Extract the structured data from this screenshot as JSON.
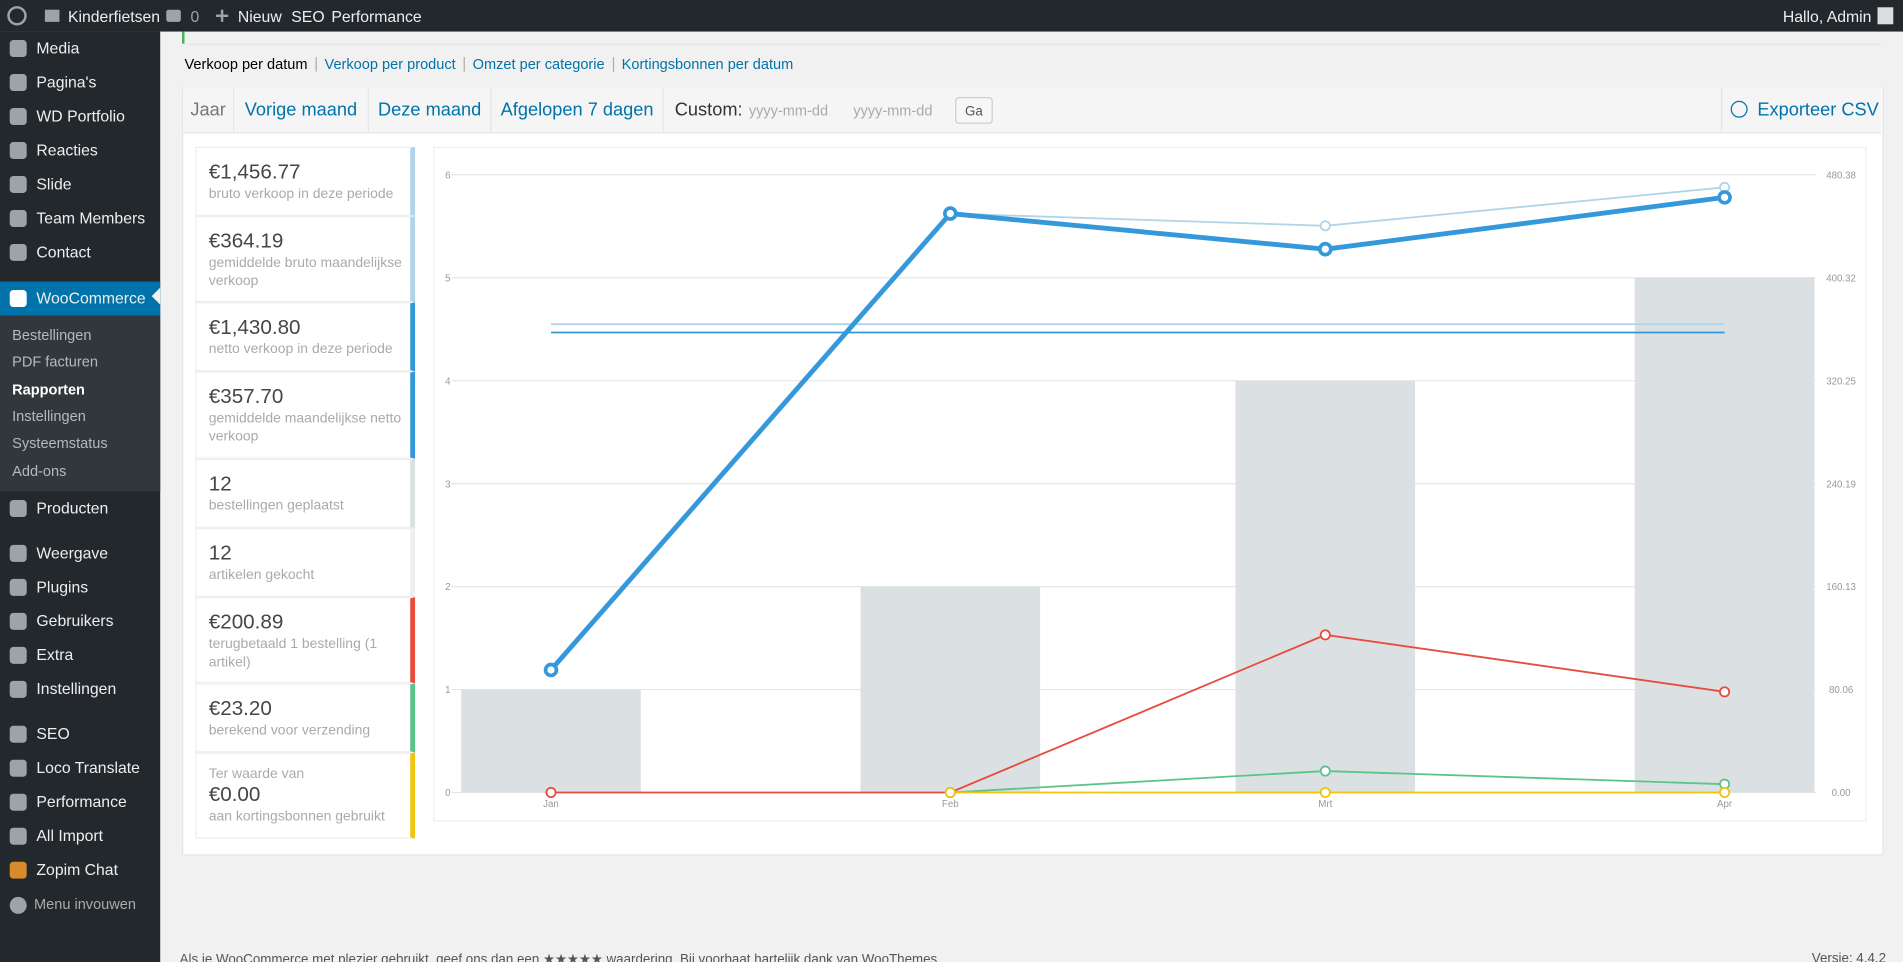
{
  "admin_bar": {
    "site": "Kinderfietsen",
    "comments": "0",
    "new": "Nieuw",
    "items": [
      "SEO",
      "Performance"
    ],
    "greeting": "Hallo, Admin"
  },
  "menu": {
    "items": [
      "Media",
      "Pagina's",
      "WD Portfolio",
      "Reacties",
      "Slide",
      "Team Members",
      "Contact"
    ],
    "active": "WooCommerce",
    "submenu": [
      "Bestellingen",
      "PDF facturen",
      "Rapporten",
      "Instellingen",
      "Systeemstatus",
      "Add-ons"
    ],
    "groups": [
      [
        "Producten"
      ],
      [
        "Weergave",
        "Plugins",
        "Gebruikers",
        "Extra",
        "Instellingen"
      ],
      [
        "SEO",
        "Loco Translate",
        "Performance",
        "All Import",
        "Zopim Chat"
      ]
    ],
    "collapse": "Menu invouwen"
  },
  "report_nav": [
    "Verkoop per datum",
    "Verkoop per product",
    "Omzet per categorie",
    "Kortingsbonnen per datum"
  ],
  "range_tabs": [
    "Jaar",
    "Vorige maand",
    "Deze maand",
    "Afgelopen 7 dagen"
  ],
  "custom": {
    "label": "Custom:",
    "from": "yyyy-mm-dd",
    "to": "yyyy-mm-dd",
    "button": "Ga"
  },
  "export": "Exporteer CSV",
  "legend": [
    {
      "value": "€1,456.77",
      "text": "bruto verkoop in deze periode",
      "color": "#b1d4ea"
    },
    {
      "value": "€364.19",
      "text": "gemiddelde bruto maandelijkse verkoop",
      "color": "#b1d4ea"
    },
    {
      "value": "€1,430.80",
      "text": "netto verkoop in deze periode",
      "color": "#3498db"
    },
    {
      "value": "€357.70",
      "text": "gemiddelde maandelijkse netto verkoop",
      "color": "#3498db"
    },
    {
      "value": "12",
      "text": "bestellingen geplaatst",
      "color": "#dbe1e3"
    },
    {
      "value": "12",
      "text": "artikelen gekocht",
      "color": "#ecf0f1"
    },
    {
      "value": "€200.89",
      "text": "terugbetaald 1 bestelling (1 artikel)",
      "color": "#e74c3c"
    },
    {
      "value": "€23.20",
      "text": "berekend voor verzending",
      "color": "#5cc488"
    },
    {
      "prefix": "Ter waarde van",
      "value": "€0.00",
      "text": "aan kortingsbonnen gebruikt",
      "color": "#f1c40f"
    }
  ],
  "chart_data": {
    "type": "combo",
    "categories": [
      "Jan",
      "Feb",
      "Mrt",
      "Apr"
    ],
    "ylim": [
      0,
      6
    ],
    "yticks": [
      0,
      1,
      2,
      3,
      4,
      5,
      6
    ],
    "y2lim": [
      0,
      480.38
    ],
    "y2ticks": [
      {
        "value": 0,
        "label": "0.00"
      },
      80.06,
      160.13,
      240.19,
      320.25,
      400.32,
      480.38
    ],
    "grid": true,
    "series": [
      {
        "type": "bar",
        "color": "#dbe1e3",
        "values": [
          1,
          2,
          4,
          5
        ]
      },
      {
        "type": "line",
        "axis": "y2",
        "color": "#b1d4ea",
        "values": [
          364.19,
          364.19,
          364.19,
          364.19
        ],
        "markers": false,
        "thick": false
      },
      {
        "type": "line",
        "axis": "y2",
        "color": "#3498db",
        "values": [
          357.7,
          357.7,
          357.7,
          357.7
        ],
        "markers": false,
        "thick": false
      },
      {
        "type": "line",
        "axis": "y2",
        "color": "#b1d4ea",
        "values": [
          95.3,
          450.2,
          440.7,
          470.57
        ],
        "markers": true,
        "thick": false
      },
      {
        "type": "line",
        "axis": "y2",
        "color": "#3498db",
        "values": [
          95.3,
          450.2,
          422.5,
          462.8
        ],
        "markers": true,
        "thick": true
      },
      {
        "type": "line",
        "axis": "y2",
        "color": "#e74c3c",
        "values": [
          0,
          0,
          122.6,
          78.29
        ],
        "markers": true,
        "thick": false
      },
      {
        "type": "line",
        "axis": "y2",
        "color": "#5cc488",
        "values": [
          null,
          0,
          16.7,
          6.5
        ],
        "markers": true,
        "thick": false
      },
      {
        "type": "line",
        "axis": "y2",
        "color": "#f1c40f",
        "values": [
          null,
          0,
          0,
          0
        ],
        "markers": true,
        "thick": false
      }
    ]
  },
  "footer": {
    "text": "Als je WooCommerce met plezier gebruikt, geef ons dan een ★★★★★ waardering. Bij voorbaat hartelijk dank van WooThemes.",
    "version": "Versie: 4.4.2"
  }
}
